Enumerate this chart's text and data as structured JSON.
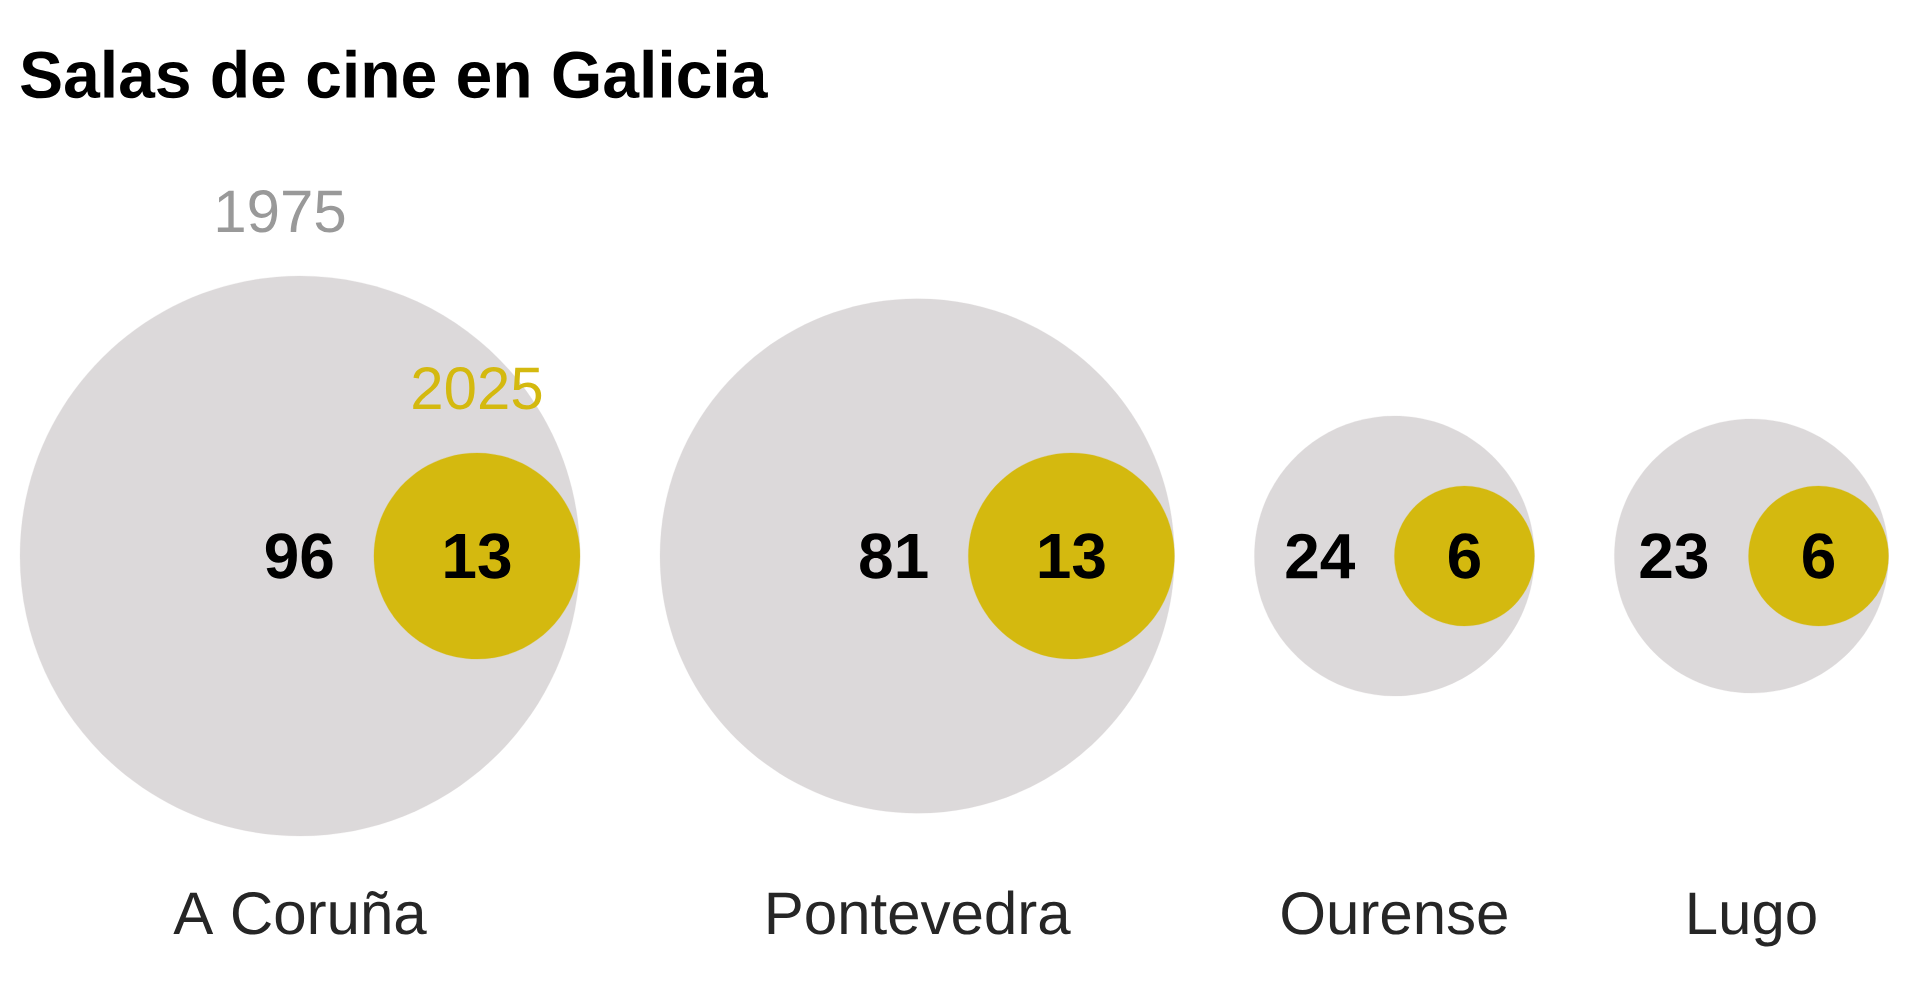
{
  "chart_data": {
    "type": "other",
    "title": "Salas de cine en Galicia",
    "categories": [
      "A Coruña",
      "Pontevedra",
      "Ourense",
      "Lugo"
    ],
    "series": [
      {
        "name": "1975",
        "color": "#dcd9da",
        "values": [
          96,
          81,
          24,
          23
        ]
      },
      {
        "name": "2025",
        "color": "#d4b90f",
        "values": [
          13,
          13,
          6,
          6
        ]
      }
    ],
    "data_labels": true
  }
}
